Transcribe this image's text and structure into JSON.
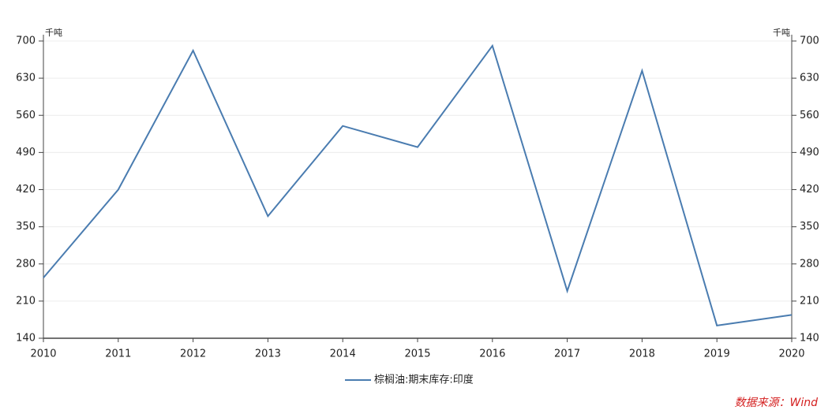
{
  "chart_data": {
    "type": "line",
    "y_unit": "千吨",
    "y2_unit": "千吨",
    "categories": [
      "2010",
      "2011",
      "2012",
      "2013",
      "2014",
      "2015",
      "2016",
      "2017",
      "2018",
      "2019",
      "2020"
    ],
    "series": [
      {
        "name": "棕榈油:期末库存:印度",
        "color": "#4a7cb0",
        "values": [
          254,
          420,
          682,
          370,
          540,
          500,
          691,
          229,
          644,
          164,
          184
        ]
      }
    ],
    "ylim": [
      140,
      700
    ],
    "yticks": [
      140,
      210,
      280,
      350,
      420,
      490,
      560,
      630,
      700
    ],
    "y2lim": [
      140,
      700
    ],
    "y2ticks": [
      140,
      210,
      280,
      350,
      420,
      490,
      560,
      630,
      700
    ],
    "grid": true,
    "legend": "bottom",
    "source": "数据来源：Wind"
  }
}
